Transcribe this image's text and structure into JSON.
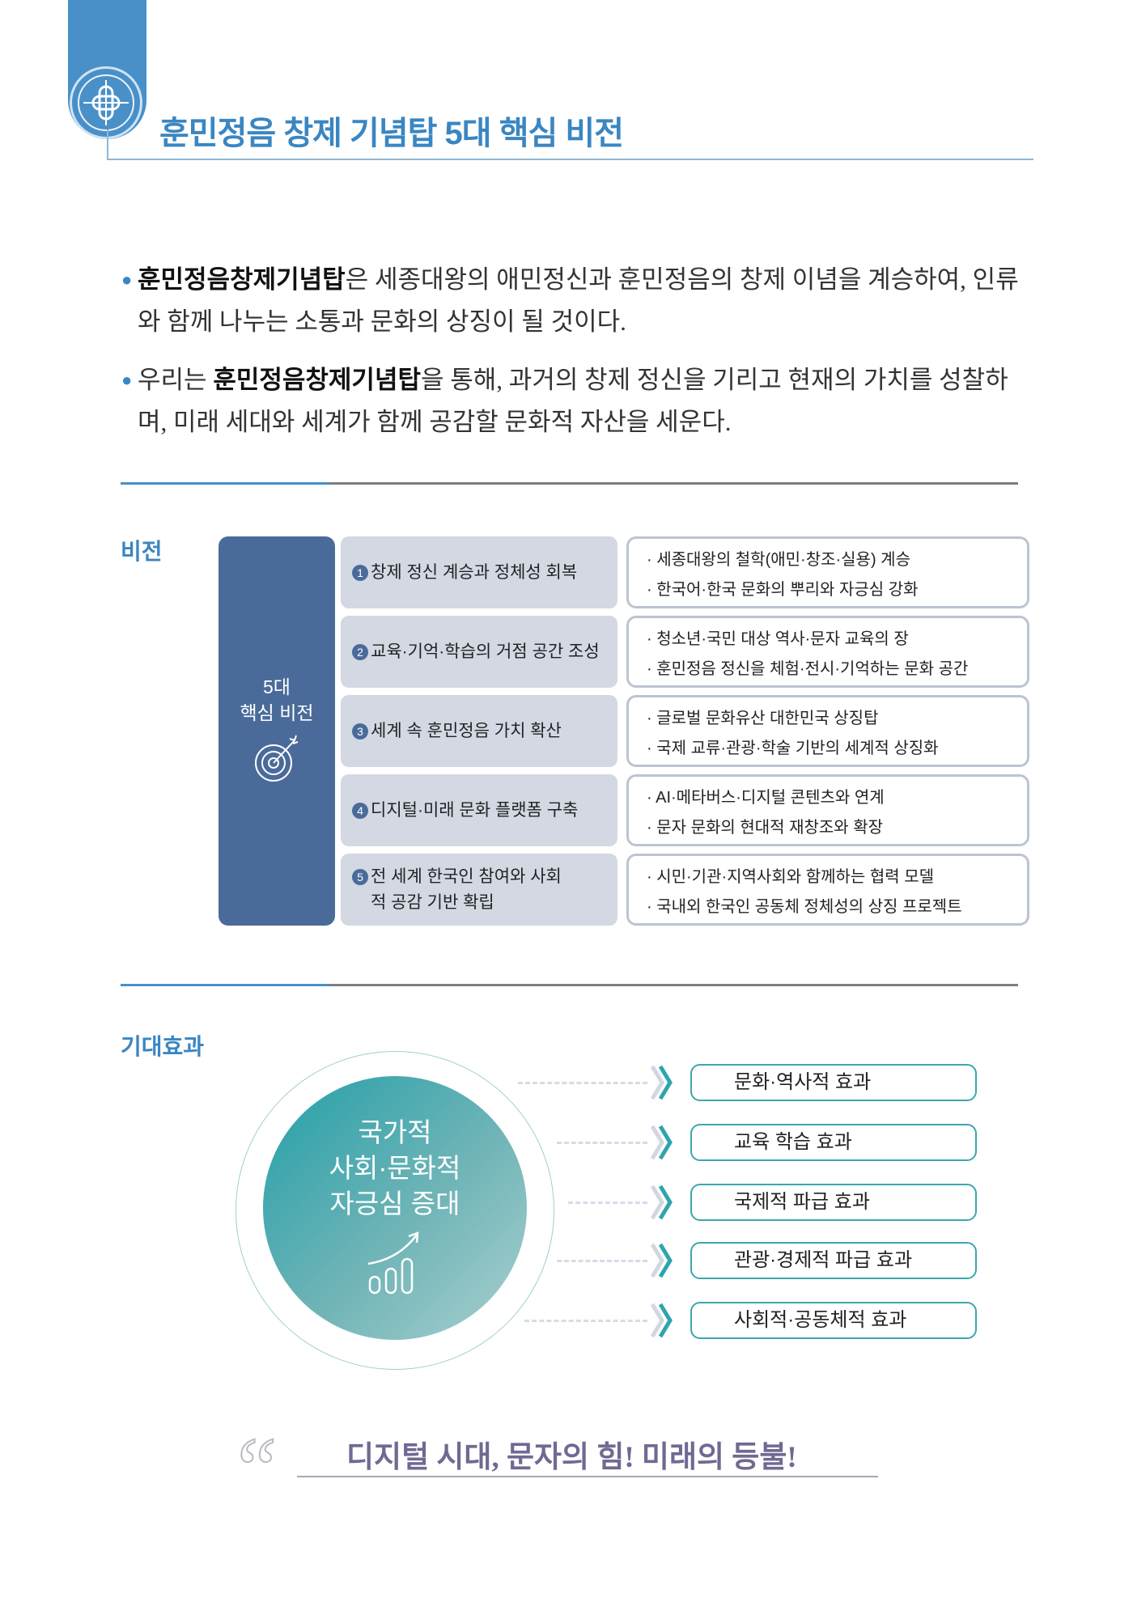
{
  "header": {
    "title": "훈민정음 창제 기념탑 5대 핵심 비전",
    "emblem_icon": "hangul-emblem-icon",
    "accent_color": "#3a86c2"
  },
  "intro": {
    "bullets": [
      {
        "bold": "훈민정음창제기념탑",
        "pre": "",
        "rest": "은 세종대왕의 애민정신과 훈민정음의 창제 이념을 계승하여, 인류와 함께 나누는 소통과 문화의 상징이 될 것이다."
      },
      {
        "pre": "우리는 ",
        "bold": "훈민정음창제기념탑",
        "rest": "을 통해, 과거의 창제 정신을 기리고 현재의 가치를 성찰하며, 미래 세대와 세계가 함께 공감할 문화적 자산을 세운다."
      }
    ]
  },
  "vision": {
    "section_label": "비전",
    "column_label_1": "5대",
    "column_label_2": "핵심 비전",
    "column_icon": "target-arrow-icon",
    "items": [
      {
        "num": "1",
        "title": "창제 정신 계승과 정체성 회복",
        "points": [
          "· 세종대왕의 철학(애민·창조·실용) 계승",
          "· 한국어·한국 문화의 뿌리와 자긍심 강화"
        ]
      },
      {
        "num": "2",
        "title": "교육·기억·학습의 거점 공간 조성",
        "points": [
          "· 청소년·국민 대상 역사·문자 교육의 장",
          "· 훈민정음 정신을 체험·전시·기억하는 문화 공간"
        ]
      },
      {
        "num": "3",
        "title": "세계 속 훈민정음 가치 확산",
        "points": [
          "· 글로벌 문화유산 대한민국 상징탑",
          "· 국제 교류·관광·학술 기반의 세계적 상징화"
        ]
      },
      {
        "num": "4",
        "title": "디지털·미래 문화 플랫폼 구축",
        "points": [
          "· AI·메타버스·디지털 콘텐츠와 연계",
          "· 문자 문화의 현대적 재창조와 확장"
        ]
      },
      {
        "num": "5",
        "title": "전 세계 한국인 참여와 사회적 공감 기반 확립",
        "points": [
          "· 시민·기관·지역사회와 함께하는 협력 모델",
          "· 국내외 한국인 공동체 정체성의 상징 프로젝트"
        ]
      }
    ]
  },
  "effects": {
    "section_label": "기대효과",
    "center_line_1": "국가적",
    "center_line_2": "사회·문화적",
    "center_line_3": "자긍심 증대",
    "center_icon": "growth-chart-icon",
    "items": [
      "문화·역사적 효과",
      "교육 학습 효과",
      "국제적 파급 효과",
      "관광·경제적 파급 효과",
      "사회적·공동체적 효과"
    ]
  },
  "slogan": {
    "text": "디지털 시대, 문자의 힘! 미래의 등불!",
    "icon": "quote-mark-icon"
  }
}
